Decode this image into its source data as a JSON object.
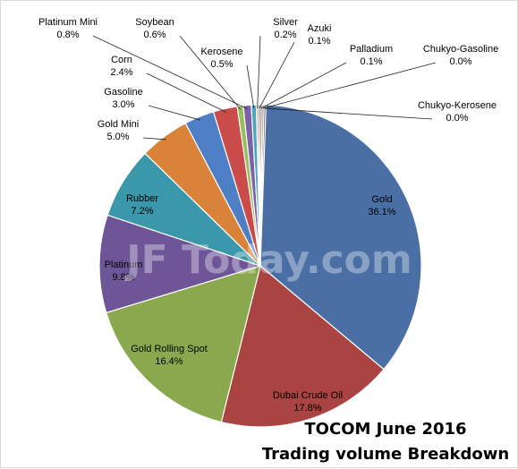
{
  "chart_data": {
    "type": "pie",
    "title_lines": [
      "TOCOM June 2016",
      "Trading volume Breakdown"
    ],
    "watermark": "JF Today.com",
    "slices": [
      {
        "label": "Gold",
        "value": 36.1,
        "display": "36.1%",
        "color": "#4a6fa5"
      },
      {
        "label": "Dubai Crude Oil",
        "value": 17.8,
        "display": "17.8%",
        "color": "#a94442"
      },
      {
        "label": "Gold Rolling Spot",
        "value": 16.4,
        "display": "16.4%",
        "color": "#8aa94f"
      },
      {
        "label": "Platinum",
        "value": 9.8,
        "display": "9.8%",
        "color": "#6e5598"
      },
      {
        "label": "Rubber",
        "value": 7.2,
        "display": "7.2%",
        "color": "#3b97aa"
      },
      {
        "label": "Gold Mini",
        "value": 5.0,
        "display": "5.0%",
        "color": "#d9833a"
      },
      {
        "label": "Gasoline",
        "value": 3.0,
        "display": "3.0%",
        "color": "#4e7fc4"
      },
      {
        "label": "Corn",
        "value": 2.4,
        "display": "2.4%",
        "color": "#c94c4a"
      },
      {
        "label": "Soybean",
        "value": 0.6,
        "display": "0.6%",
        "color": "#9abd5c"
      },
      {
        "label": "Platinum Mini",
        "value": 0.8,
        "display": "0.8%",
        "color": "#7b62a8"
      },
      {
        "label": "Kerosene",
        "value": 0.5,
        "display": "0.5%",
        "color": "#4aa6bf"
      },
      {
        "label": "Silver",
        "value": 0.2,
        "display": "0.2%",
        "color": "#f09a4a"
      },
      {
        "label": "Azuki",
        "value": 0.1,
        "display": "0.1%",
        "color": "#2f5d91"
      },
      {
        "label": "Palladium",
        "value": 0.1,
        "display": "0.1%",
        "color": "#8c3533"
      },
      {
        "label": "Chukyo-Gasoline",
        "value": 0.0,
        "display": "0.0%",
        "color": "#6f8c3b"
      },
      {
        "label": "Chukyo-Kerosene",
        "value": 0.0,
        "display": "0.0%",
        "color": "#58447c"
      }
    ]
  }
}
